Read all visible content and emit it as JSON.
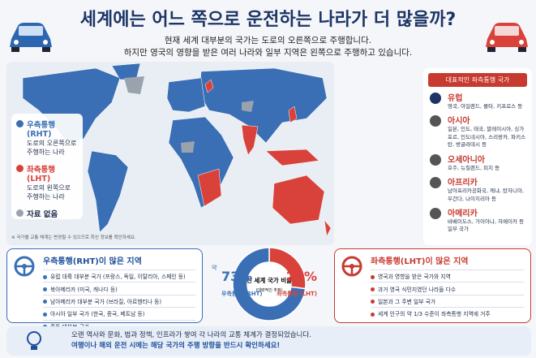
{
  "header": {
    "title": "세계에는 어느 쪽으로 운전하는 나라가 더 많을까?",
    "subtitle": [
      "현재 세계 대부분의 국가는 도로의 오른쪽으로 주행합니다.",
      "하지만 영국의 영향을 받은 여러 나라와 일부 지역은 왼쪽으로 주행하고 있습니다."
    ]
  },
  "map_legend": [
    {
      "label": "우측통행 (RHT)",
      "desc": "도로의 오른쪽으로 주행하는 나라"
    },
    {
      "label": "좌측통행 (LHT)",
      "desc": "도로의 왼쪽으로 주행하는 나라"
    },
    {
      "label": "자료 없음"
    }
  ],
  "map_note": "※ 국가별 교통 체계는 변경될 수 있으므로 최신 정보를 확인하세요.",
  "lht_panel": {
    "title": "대표적인 좌측통행 국가",
    "regions": [
      {
        "name": "유럽",
        "countries": "영국, 아일랜드, 몰타, 키프로스 등"
      },
      {
        "name": "아시아",
        "countries": "일본, 인도, 태국, 말레이시아, 싱가포르, 인도네시아, 스리랑카, 파키스탄, 방글라데시 등"
      },
      {
        "name": "오세아니아",
        "countries": "호주, 뉴질랜드, 피지 등"
      },
      {
        "name": "아프리카",
        "countries": "남아프리카공화국, 케냐, 탄자니아, 우간다, 나이지리아 등"
      },
      {
        "name": "아메리카",
        "countries": "바베이도스, 가이아나, 자메이카 등 일부 국가"
      }
    ]
  },
  "rht_box": {
    "title": "우측통행(RHT)이 많은 지역",
    "items": [
      "유럽 대륙 대부분 국가 (프랑스, 독일, 이탈리아, 스페인 등)",
      "북아메리카 (미국, 캐나다 등)",
      "남아메리카 대부분 국가 (브라질, 아르헨티나 등)",
      "아시아 일부 국가 (한국, 중국, 베트남 등)",
      "중동 대부분 국가"
    ]
  },
  "lht_box": {
    "title": "좌측통행(LHT)이 많은 지역",
    "items": [
      "영국과 영향을 받은 국가와 지역",
      "과거 영국 식민지였던 나라들 다수",
      "일본과 그 주변 일부 국가",
      "세계 인구의 약 1/3 수준이 좌측통행 지역에 거주"
    ]
  },
  "footer": {
    "line1": "오랜 역사와 문화, 법과 정책, 인프라가 쌓여 각 나라의 교통 체계가 결정되었습니다.",
    "line2": "여행이나 해외 운전 시에는 해당 국가의 주행 방향을 반드시 확인하세요!"
  },
  "chart_data": {
    "type": "pie",
    "title": "전 세계 국가 비율",
    "subtitle": "(대략적인 추정)",
    "value_prefix": "약",
    "categories": [
      "우측통행 (RHT)",
      "좌측통행 (LHT)"
    ],
    "values": [
      73,
      27
    ],
    "value_labels": [
      "73%",
      "27%"
    ],
    "colors": [
      "#3a6fb5",
      "#d9423a"
    ]
  }
}
